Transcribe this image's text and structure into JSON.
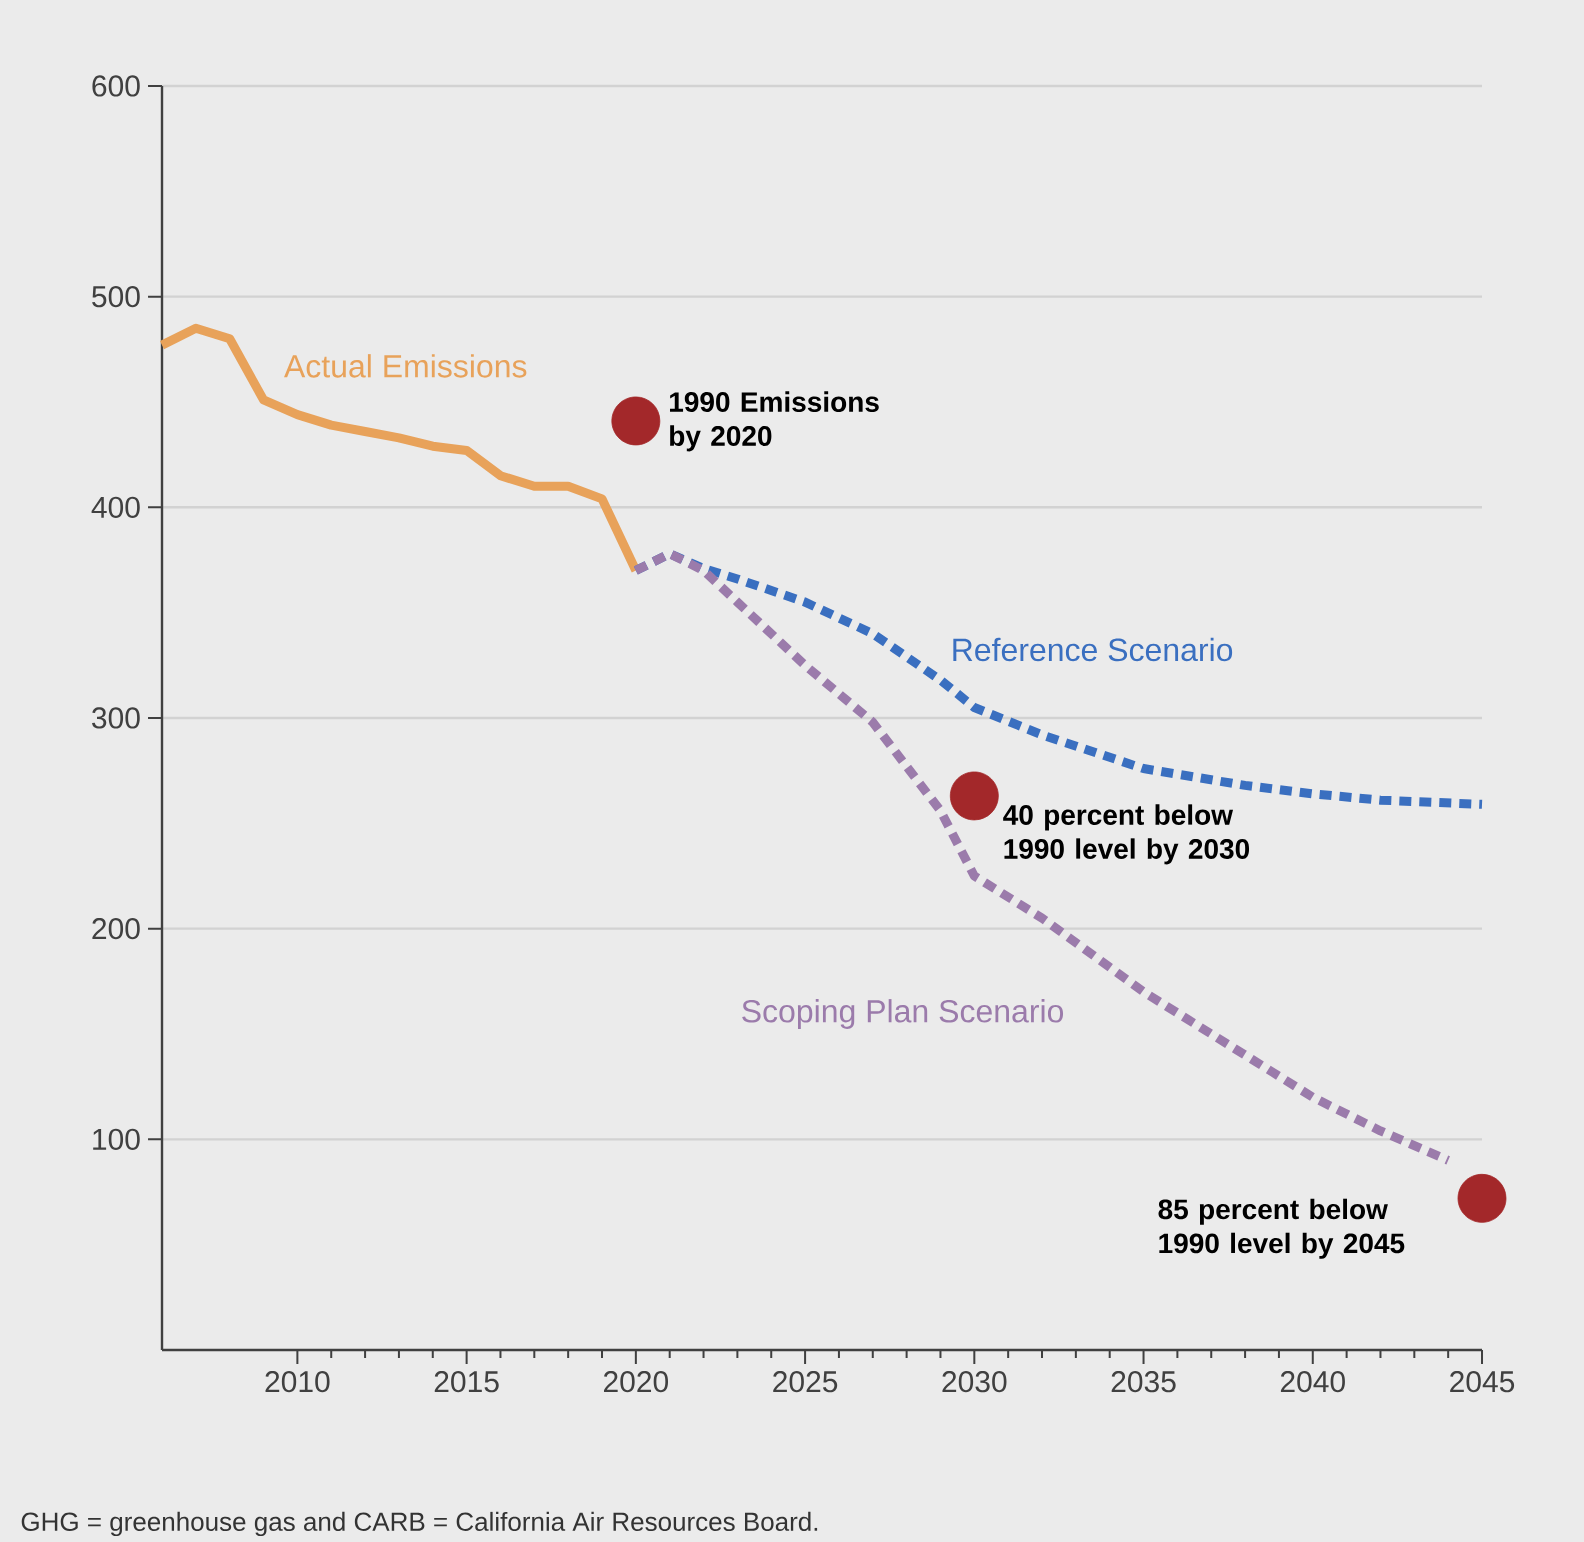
{
  "chart_data": {
    "type": "line",
    "xlim": [
      2006,
      2045
    ],
    "ylim": [
      0,
      600
    ],
    "xticks": [
      2010,
      2015,
      2020,
      2025,
      2030,
      2035,
      2040,
      2045
    ],
    "yticks": [
      100,
      200,
      300,
      400,
      500,
      600
    ],
    "grid": "y",
    "series": [
      {
        "name": "Actual Emissions",
        "color": "#e8a25a",
        "line_style": "solid",
        "x": [
          2006,
          2007,
          2008,
          2009,
          2010,
          2011,
          2012,
          2013,
          2014,
          2015,
          2016,
          2017,
          2018,
          2019,
          2020
        ],
        "values": [
          477,
          485,
          480,
          451,
          444,
          439,
          436,
          433,
          429,
          427,
          415,
          410,
          410,
          404,
          370
        ]
      },
      {
        "name": "Reference Scenario",
        "color": "#3a6fc0",
        "line_style": "dashed",
        "x": [
          2020,
          2021,
          2022,
          2023,
          2025,
          2027,
          2029,
          2030,
          2032,
          2035,
          2038,
          2040,
          2042,
          2045
        ],
        "values": [
          370,
          378,
          371,
          366,
          355,
          340,
          318,
          305,
          292,
          276,
          268,
          264,
          261,
          259
        ]
      },
      {
        "name": "Scoping Plan Scenario",
        "color": "#9b7bab",
        "line_style": "dashed",
        "x": [
          2020,
          2021,
          2022,
          2023,
          2025,
          2027,
          2029,
          2030,
          2032,
          2035,
          2038,
          2040,
          2042,
          2044
        ],
        "values": [
          370,
          378,
          370,
          355,
          325,
          298,
          256,
          225,
          205,
          170,
          140,
          120,
          104,
          90
        ]
      },
      {
        "type": "scatter",
        "color": "#a3282a",
        "x": [
          2020,
          2030,
          2045
        ],
        "values": [
          441,
          263,
          72
        ]
      }
    ],
    "annotations": [
      {
        "text": "**1990 Emissions by 2020**",
        "x": 2020,
        "y": 441
      },
      {
        "text": "**40 percent below 1990 level by 2030**",
        "x": 2030,
        "y": 263
      },
      {
        "text": "**85 percent below 1990 level by 2045**",
        "x": 2045,
        "y": 72
      },
      "GHG = greenhouse gas and CARB = California Air Resources Board."
    ]
  }
}
